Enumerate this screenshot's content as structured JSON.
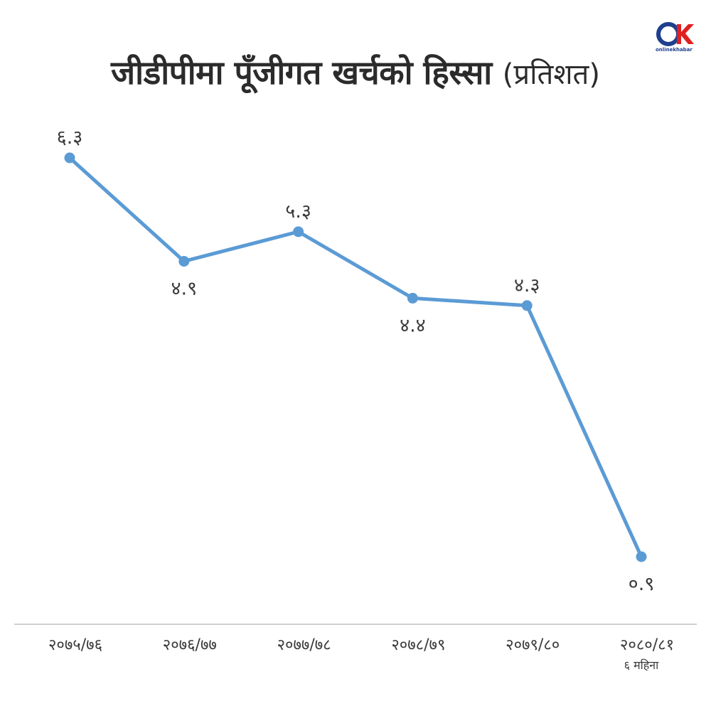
{
  "title": {
    "main": "जीडीपीमा पूँजीगत खर्चको हिस्सा",
    "unit": "(प्रतिशत)"
  },
  "logo": {
    "text": "onlinekhabar",
    "colors": {
      "ring": "#1f3f8f",
      "k": "#e02020"
    }
  },
  "chart_data": {
    "type": "line",
    "categories": [
      "२०७५/७६",
      "२०७६/७७",
      "२०७७/७८",
      "२०७८/७९",
      "२०७९/८०",
      "२०८०/८१"
    ],
    "category_notes": [
      "",
      "",
      "",
      "",
      "",
      "६ महिना"
    ],
    "values": [
      6.3,
      4.9,
      5.3,
      4.4,
      4.3,
      0.9
    ],
    "value_labels": [
      "६.३",
      "४.९",
      "५.३",
      "४.४",
      "४.३",
      "०.९"
    ],
    "label_positions": [
      "above",
      "below",
      "above",
      "below",
      "above",
      "below"
    ],
    "ylim": [
      0,
      7
    ],
    "grid": false,
    "colors": {
      "line": "#5b9bd5",
      "axis": "#d0d0d0",
      "text": "#3a3a3a"
    }
  }
}
